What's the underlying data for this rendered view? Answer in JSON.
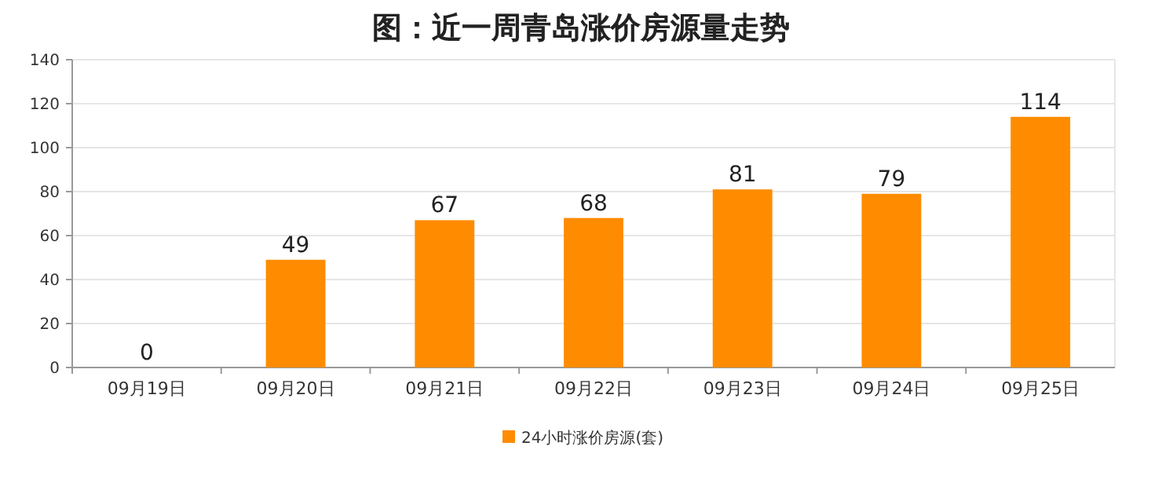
{
  "chart_data": {
    "type": "bar",
    "title": "图：近一周青岛涨价房源量走势",
    "categories": [
      "09月19日",
      "09月20日",
      "09月21日",
      "09月22日",
      "09月23日",
      "09月24日",
      "09月25日"
    ],
    "series": [
      {
        "name": "24小时涨价房源(套)",
        "color": "#ff8c00",
        "values": [
          0,
          49,
          67,
          68,
          81,
          79,
          114
        ]
      }
    ],
    "ylim": [
      0,
      140
    ],
    "yticks": [
      0,
      20,
      40,
      60,
      80,
      100,
      120,
      140
    ],
    "grid": "y",
    "legend": "bottom",
    "data_labels": true
  }
}
